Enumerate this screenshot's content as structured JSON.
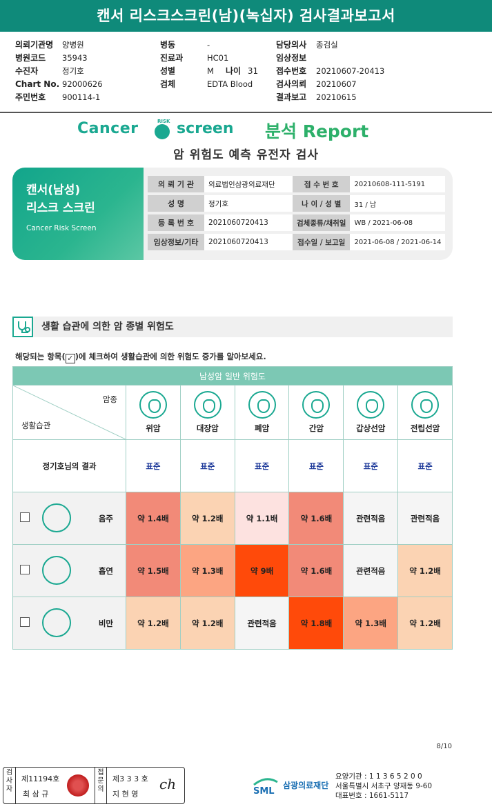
{
  "title": "캔서 리스크스크린(남)(녹십자) 검사결과보고서",
  "header": {
    "col1": [
      {
        "label": "의뢰기관명",
        "value": "양병원"
      },
      {
        "label": "병원코드",
        "value": "35943"
      },
      {
        "label": "수진자",
        "value": "정기호"
      },
      {
        "label": "Chart No.",
        "value": "92000626"
      },
      {
        "label": "주민번호",
        "value": "900114-1"
      }
    ],
    "col2": [
      {
        "label": "병동",
        "value": "-"
      },
      {
        "label": "진료과",
        "value": "HC01"
      },
      {
        "label": "성별",
        "value": "M"
      },
      {
        "label": "검체",
        "value": "EDTA Blood"
      }
    ],
    "age_label": "나이",
    "age_value": "31",
    "col3": [
      {
        "label": "담당의사",
        "value": "종검실"
      },
      {
        "label": "임상정보",
        "value": ""
      },
      {
        "label": "접수번호",
        "value": "20210607-20413"
      },
      {
        "label": "검사의뢰",
        "value": "20210607"
      },
      {
        "label": "결과보고",
        "value": "20210615"
      }
    ]
  },
  "logo": {
    "cancer": "Cancer",
    "risk": "RISK",
    "screen": "screen",
    "report": "분석 Report"
  },
  "subtitle": "암 위험도 예측 유전자 검사",
  "info_panel": {
    "title_line1": "캔서(남성)",
    "title_line2": "리스크 스크린",
    "title_en": "Cancer Risk Screen",
    "rows": [
      {
        "l1": "의 뢰 기 관",
        "v1": "의료법인삼광의료재단",
        "l2": "접 수 번 호",
        "v2": "20210608-111-5191"
      },
      {
        "l1": "성          명",
        "v1": "정기호",
        "l2": "나 이 / 성 별",
        "v2": "31 / 남"
      },
      {
        "l1": "등 록 번 호",
        "v1": "2021060720413",
        "l2": "검체종류/채취일",
        "v2": "WB / 2021-06-08"
      },
      {
        "l1": "임상정보/기타",
        "v1": "2021060720413",
        "l2": "접수일 / 보고일",
        "v2": "2021-06-08 / 2021-06-14"
      }
    ]
  },
  "section_title": "생활 습관에 의한 암 종별 위험도",
  "instruction_pre": "해당되는 항목(",
  "instruction_check": "✓",
  "instruction_post": ")에 체크하여 생활습관에 의한 위험도 증가를 알아보세요.",
  "table": {
    "caption": "남성암 일반 위험도",
    "corner_top": "암종",
    "corner_bottom": "생활습관",
    "cancers": [
      "위암",
      "대장암",
      "폐암",
      "간암",
      "갑상선암",
      "전립선암"
    ],
    "result_label": "정기호님의 결과",
    "results": [
      "표준",
      "표준",
      "표준",
      "표준",
      "표준",
      "표준"
    ],
    "habits": [
      {
        "name": "음주",
        "icon": "alcohol-icon",
        "values": [
          "약 1.4배",
          "약 1.2배",
          "약 1.1배",
          "약 1.6배",
          "관련적음",
          "관련적음"
        ],
        "colors": [
          "#f28a78",
          "#fbd3b3",
          "#fde2e0",
          "#f28a78",
          "#f5f5f5",
          "#f5f5f5"
        ]
      },
      {
        "name": "흡연",
        "icon": "smoking-icon",
        "values": [
          "약 1.5배",
          "약 1.3배",
          "약 9배",
          "약 1.6배",
          "관련적음",
          "약 1.2배"
        ],
        "colors": [
          "#f28a78",
          "#fca582",
          "#ff4a0a",
          "#f28a78",
          "#f5f5f5",
          "#fbd3b3"
        ]
      },
      {
        "name": "비만",
        "icon": "obesity-icon",
        "values": [
          "약 1.2배",
          "약 1.2배",
          "관련적음",
          "약 1.8배",
          "약 1.3배",
          "약 1.2배"
        ],
        "colors": [
          "#fbd3b3",
          "#fbd3b3",
          "#f5f5f5",
          "#ff4a0a",
          "#fca582",
          "#fbd3b3"
        ]
      }
    ]
  },
  "page_number": "8/10",
  "footer": {
    "v1": "검사자",
    "t1a": "제11194호",
    "t1b": "최 삼 규",
    "v2": "접문의",
    "t2a": "제3 3 3 호",
    "t2b": "지 현 영",
    "org": "삼광의료재단",
    "contact1": "요양기관 : 1 1 3 6 5 2 0 0",
    "contact2": "서울특별시 서초구 양재동 9-60",
    "contact3": "대표번호 : 1661-5117"
  }
}
